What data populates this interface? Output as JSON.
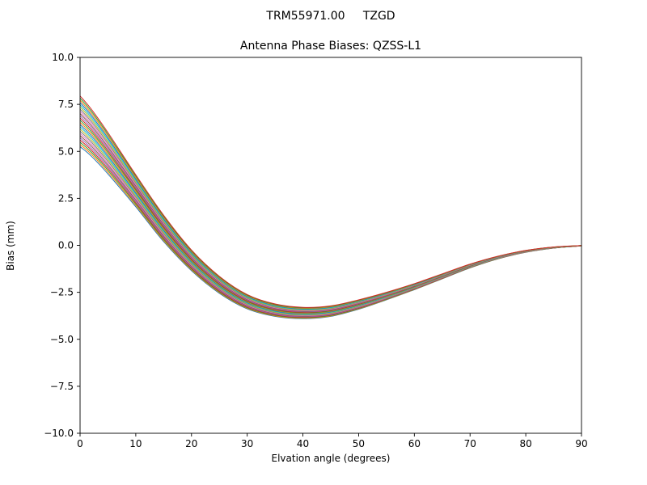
{
  "chart_data": {
    "type": "line",
    "suptitle": "TRM55971.00     TZGD",
    "title": "Antenna Phase Biases: QZSS-L1",
    "xlabel": "Elvation angle (degrees)",
    "ylabel": "Bias (mm)",
    "xlim": [
      0,
      90
    ],
    "ylim": [
      -10,
      10
    ],
    "grid": false,
    "legend": false,
    "xticks": [
      0,
      10,
      20,
      30,
      40,
      50,
      60,
      70,
      80,
      90
    ],
    "xtick_labels": [
      "0",
      "10",
      "20",
      "30",
      "40",
      "50",
      "60",
      "70",
      "80",
      "90"
    ],
    "yticks": [
      10,
      7.5,
      5,
      2.5,
      0,
      -2.5,
      -5,
      -7.5,
      -10
    ],
    "ytick_labels": [
      "10.0",
      "7.5",
      "5.0",
      "2.5",
      "0.0",
      "−2.5",
      "−5.0",
      "−7.5",
      "−10.0"
    ],
    "x": [
      0,
      2,
      5,
      10,
      15,
      20,
      25,
      30,
      35,
      40,
      45,
      50,
      55,
      60,
      65,
      70,
      75,
      80,
      85,
      90
    ],
    "center": [
      6.6,
      6.0,
      4.9,
      2.9,
      0.9,
      -0.8,
      -2.1,
      -3.0,
      -3.45,
      -3.6,
      -3.5,
      -3.15,
      -2.7,
      -2.2,
      -1.65,
      -1.1,
      -0.65,
      -0.32,
      -0.12,
      -0.02
    ],
    "spread": [
      1.35,
      1.25,
      1.1,
      0.85,
      0.7,
      0.55,
      0.45,
      0.38,
      0.33,
      0.3,
      0.28,
      0.25,
      0.2,
      0.16,
      0.13,
      0.1,
      0.07,
      0.05,
      0.03,
      0.01
    ],
    "num_lines": 24,
    "colors": [
      "#1f77b4",
      "#ff7f0e",
      "#2ca02c",
      "#d62728",
      "#9467bd",
      "#8c564b",
      "#e377c2",
      "#7f7f7f",
      "#bcbd22",
      "#17becf"
    ]
  }
}
